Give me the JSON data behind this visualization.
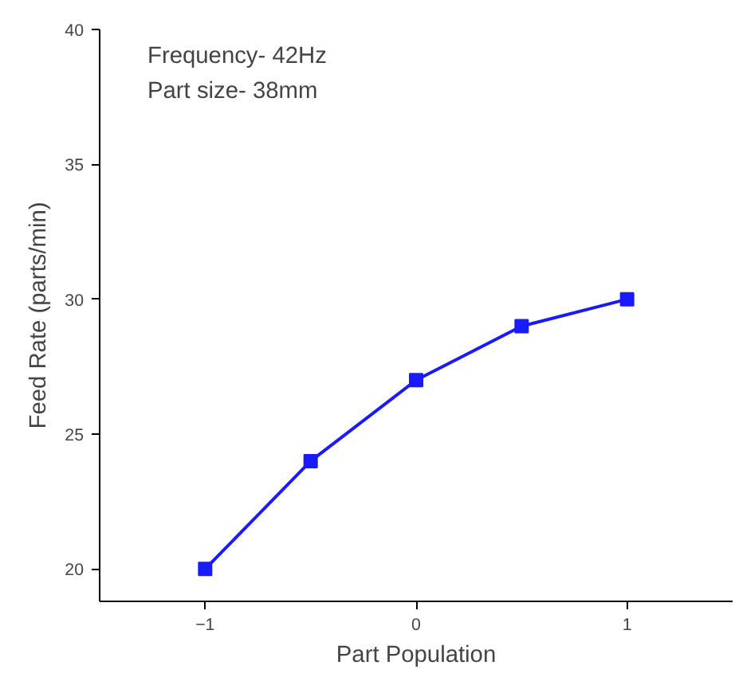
{
  "chart_data": {
    "type": "line",
    "xlabel": "Part Population",
    "ylabel": "Feed Rate (parts/min)",
    "annotations": [
      "Frequency- 42Hz",
      "Part size- 38mm"
    ],
    "x": [
      -1,
      -0.5,
      0,
      0.5,
      1
    ],
    "series": [
      {
        "color": "#1a1aff",
        "values": [
          20,
          24,
          27,
          29,
          30
        ]
      }
    ],
    "xlim": [
      -1.5,
      1.5
    ],
    "xticks": [
      -1,
      0,
      1
    ],
    "ylim": [
      18.8,
      40
    ],
    "yticks": [
      20,
      25,
      30,
      35,
      40
    ],
    "grid": false,
    "marker": "square",
    "line_style": "solid"
  }
}
